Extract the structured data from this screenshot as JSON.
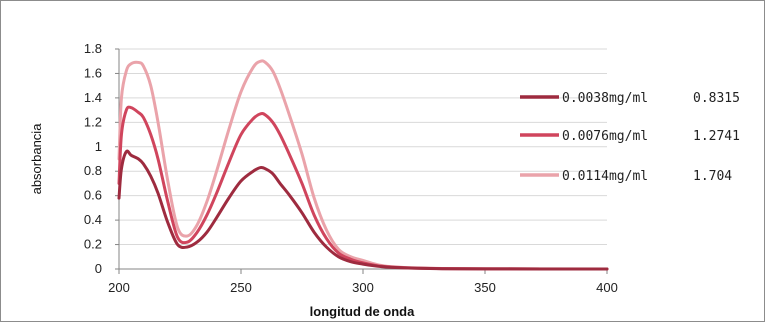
{
  "chart_data": {
    "type": "line",
    "title": "",
    "xlabel": "longitud de onda",
    "ylabel": "absorbancia",
    "xlim": [
      200,
      400
    ],
    "ylim": [
      0,
      1.8
    ],
    "x_ticks": [
      200,
      250,
      300,
      350,
      400
    ],
    "y_ticks": [
      0,
      0.2,
      0.4,
      0.6,
      0.8,
      1,
      1.2,
      1.4,
      1.6,
      1.8
    ],
    "y_tick_labels": [
      "0",
      "0.2",
      "0.4",
      "0.6",
      "0.8",
      "1",
      "1.2",
      "1.4",
      "1.6",
      "1.8"
    ],
    "grid": true,
    "legend_position": "right",
    "x": [
      200,
      201,
      203,
      205,
      208,
      210,
      213,
      216,
      220,
      224,
      228,
      232,
      236,
      240,
      245,
      250,
      255,
      258,
      260,
      263,
      266,
      270,
      275,
      280,
      285,
      290,
      295,
      300,
      305,
      310,
      320,
      330,
      350,
      400
    ],
    "series": [
      {
        "name": "0.0038mg/ml",
        "legend_value": "0.8315",
        "color": "#9e2b3f",
        "values": [
          0.58,
          0.82,
          0.96,
          0.93,
          0.9,
          0.86,
          0.76,
          0.62,
          0.38,
          0.2,
          0.18,
          0.22,
          0.3,
          0.42,
          0.58,
          0.72,
          0.8,
          0.83,
          0.82,
          0.78,
          0.7,
          0.6,
          0.46,
          0.3,
          0.18,
          0.1,
          0.06,
          0.04,
          0.025,
          0.015,
          0.007,
          0.003,
          0.001,
          0
        ]
      },
      {
        "name": "0.0076mg/ml",
        "legend_value": "1.2741",
        "color": "#d0455d",
        "values": [
          0.7,
          1.1,
          1.3,
          1.32,
          1.28,
          1.24,
          1.1,
          0.9,
          0.55,
          0.26,
          0.22,
          0.3,
          0.44,
          0.62,
          0.87,
          1.1,
          1.23,
          1.27,
          1.26,
          1.2,
          1.1,
          0.93,
          0.7,
          0.44,
          0.25,
          0.13,
          0.08,
          0.05,
          0.03,
          0.018,
          0.008,
          0.004,
          0.001,
          0
        ]
      },
      {
        "name": "0.0114mg/ml",
        "legend_value": "1.704",
        "color": "#eaa3aa",
        "values": [
          0.9,
          1.4,
          1.62,
          1.68,
          1.69,
          1.66,
          1.5,
          1.2,
          0.72,
          0.34,
          0.27,
          0.36,
          0.55,
          0.8,
          1.14,
          1.45,
          1.65,
          1.7,
          1.69,
          1.62,
          1.48,
          1.25,
          0.94,
          0.58,
          0.32,
          0.16,
          0.1,
          0.07,
          0.04,
          0.022,
          0.01,
          0.005,
          0.002,
          0
        ]
      }
    ]
  }
}
